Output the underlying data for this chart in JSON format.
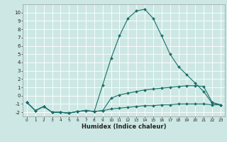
{
  "xlabel": "Humidex (Indice chaleur)",
  "bg_color": "#cde8e4",
  "grid_color": "#ffffff",
  "line_color": "#1a6e6a",
  "xlim": [
    -0.5,
    23.5
  ],
  "ylim": [
    -2.5,
    11.0
  ],
  "yticks": [
    -2,
    -1,
    0,
    1,
    2,
    3,
    4,
    5,
    6,
    7,
    8,
    9,
    10
  ],
  "xticks": [
    0,
    1,
    2,
    3,
    4,
    5,
    6,
    7,
    8,
    9,
    10,
    11,
    12,
    13,
    14,
    15,
    16,
    17,
    18,
    19,
    20,
    21,
    22,
    23
  ],
  "line1_x": [
    0,
    1,
    2,
    3,
    4,
    5,
    6,
    7,
    8,
    9,
    10,
    11,
    12,
    13,
    14,
    15,
    16,
    17,
    18,
    19,
    20,
    21,
    22,
    23
  ],
  "line1_y": [
    -0.8,
    -1.8,
    -1.3,
    -2.0,
    -2.0,
    -2.1,
    -1.9,
    -1.8,
    -1.9,
    -1.8,
    -1.6,
    -1.5,
    -1.4,
    -1.3,
    -1.2,
    -1.2,
    -1.1,
    -1.1,
    -1.0,
    -1.0,
    -1.0,
    -1.0,
    -1.1,
    -1.1
  ],
  "line2_x": [
    0,
    1,
    2,
    3,
    4,
    5,
    6,
    7,
    8,
    9,
    10,
    11,
    12,
    13,
    14,
    15,
    16,
    17,
    18,
    19,
    20,
    21,
    22,
    23
  ],
  "line2_y": [
    -0.8,
    -1.8,
    -1.3,
    -2.0,
    -2.0,
    -2.1,
    -1.9,
    -1.8,
    -1.9,
    -1.8,
    -0.3,
    0.1,
    0.3,
    0.5,
    0.7,
    0.8,
    0.9,
    1.0,
    1.1,
    1.2,
    1.2,
    1.1,
    -0.8,
    -1.1
  ],
  "line3_x": [
    0,
    1,
    2,
    3,
    4,
    5,
    6,
    7,
    8,
    9,
    10,
    11,
    12,
    13,
    14,
    15,
    16,
    17,
    18,
    19,
    20,
    21,
    22,
    23
  ],
  "line3_y": [
    -0.8,
    -1.8,
    -1.3,
    -2.0,
    -2.0,
    -2.1,
    -1.9,
    -1.8,
    -1.9,
    1.3,
    4.5,
    7.2,
    9.3,
    10.2,
    10.4,
    9.3,
    7.2,
    5.0,
    3.5,
    2.5,
    1.5,
    0.5,
    -0.9,
    -1.1
  ]
}
